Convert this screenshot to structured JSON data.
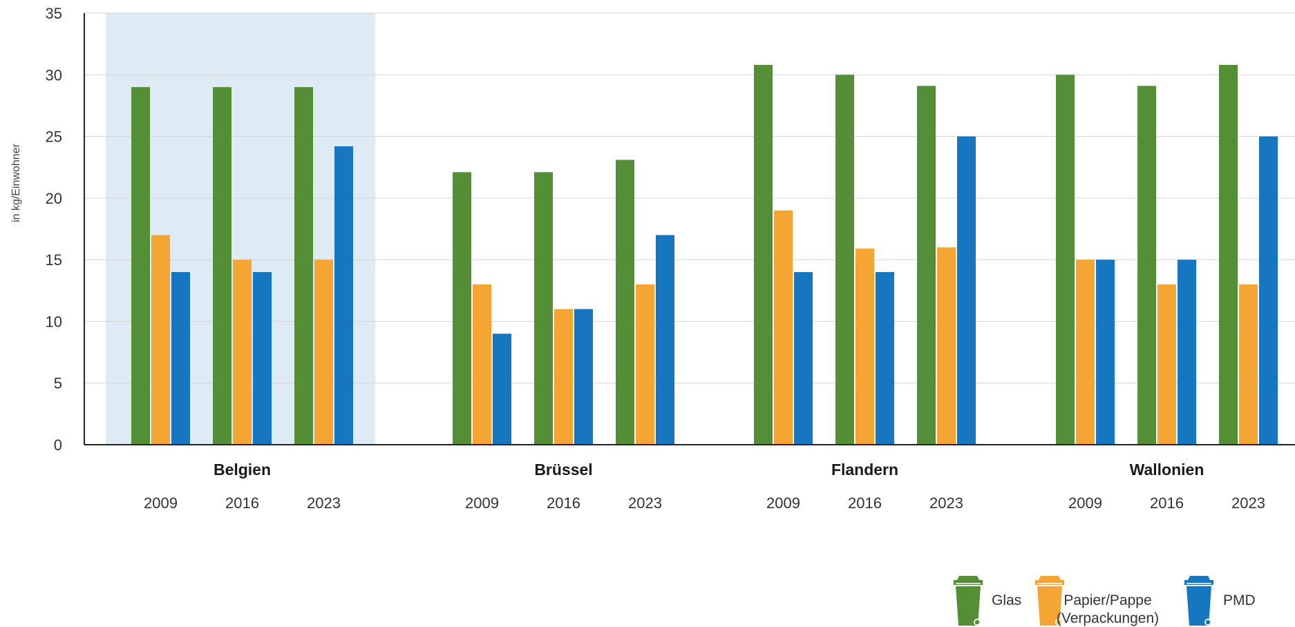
{
  "chart_data": {
    "type": "bar",
    "ylabel": "in kg/Einwohner",
    "ylim": [
      0,
      35
    ],
    "yticks": [
      0,
      5,
      10,
      15,
      20,
      25,
      30,
      35
    ],
    "grid": true,
    "highlight_group": "Belgien",
    "groups": [
      {
        "name": "Belgien",
        "years": [
          {
            "year": "2009",
            "values": [
              29,
              17,
              14
            ]
          },
          {
            "year": "2016",
            "values": [
              29,
              15,
              14
            ]
          },
          {
            "year": "2023",
            "values": [
              29,
              15,
              24.2
            ]
          }
        ]
      },
      {
        "name": "Brüssel",
        "years": [
          {
            "year": "2009",
            "values": [
              22.1,
              13,
              9
            ]
          },
          {
            "year": "2016",
            "values": [
              22.1,
              11,
              11
            ]
          },
          {
            "year": "2023",
            "values": [
              23.1,
              13,
              17
            ]
          }
        ]
      },
      {
        "name": "Flandern",
        "years": [
          {
            "year": "2009",
            "values": [
              30.8,
              19,
              14
            ]
          },
          {
            "year": "2016",
            "values": [
              30,
              15.9,
              14
            ]
          },
          {
            "year": "2023",
            "values": [
              29.1,
              16,
              25
            ]
          }
        ]
      },
      {
        "name": "Wallonien",
        "years": [
          {
            "year": "2009",
            "values": [
              30,
              15,
              15
            ]
          },
          {
            "year": "2016",
            "values": [
              29.1,
              13,
              15
            ]
          },
          {
            "year": "2023",
            "values": [
              30.8,
              13,
              25
            ]
          }
        ]
      }
    ],
    "series": [
      {
        "name": "Glas",
        "color": "#548e37"
      },
      {
        "name": "Papier/Pappe\n(Verpackungen)",
        "color": "#f5a534"
      },
      {
        "name": "PMD",
        "color": "#1677c0"
      }
    ],
    "legend_position": "bottom-right",
    "legend_icon": "trash-bin-icon",
    "highlight_color": "#deebf4",
    "grid_color": "#d5d5d5",
    "axis_color": "#222222"
  }
}
